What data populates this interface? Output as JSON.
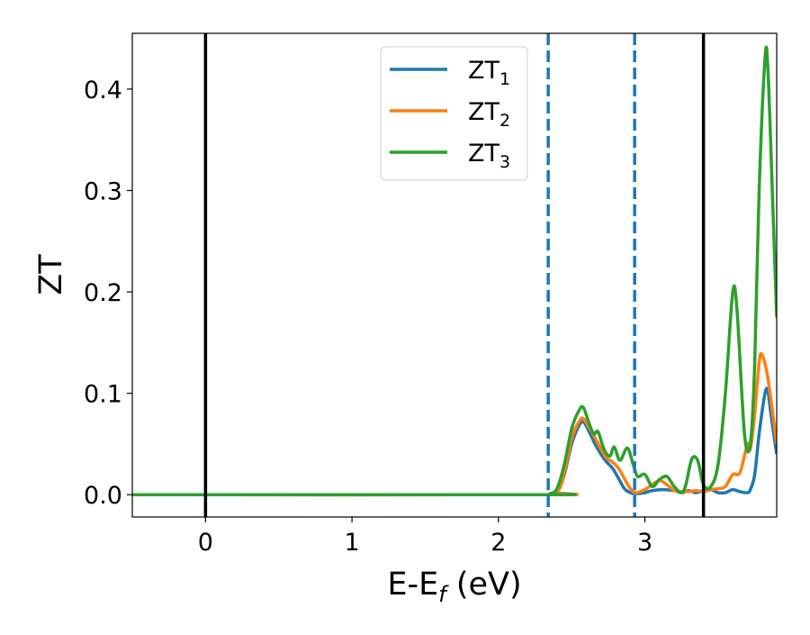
{
  "chart_data": {
    "type": "line",
    "title": "",
    "xlabel": "E-E",
    "xlabel_subscript": "f",
    "xlabel_unit": " (eV)",
    "ylabel": "ZT",
    "xlim": [
      -0.5,
      3.9
    ],
    "ylim": [
      -0.022,
      0.455
    ],
    "x_ticks": [
      0,
      1,
      2,
      3
    ],
    "x_tick_labels": [
      "0",
      "1",
      "2",
      "3"
    ],
    "y_ticks": [
      0.0,
      0.1,
      0.2,
      0.3,
      0.4
    ],
    "y_tick_labels": [
      "0.0",
      "0.1",
      "0.2",
      "0.3",
      "0.4"
    ],
    "grid": false,
    "legend_position": "top-center",
    "vertical_lines": [
      {
        "x": 0.0,
        "style": "solid",
        "color": "#000000"
      },
      {
        "x": 2.34,
        "style": "dashed",
        "color": "#1f77b4"
      },
      {
        "x": 2.93,
        "style": "dashed",
        "color": "#1f77b4"
      },
      {
        "x": 3.4,
        "style": "solid",
        "color": "#000000"
      }
    ],
    "series": [
      {
        "name": "ZT",
        "name_subscript": "1",
        "color": "#1f77b4",
        "points": [
          [
            -0.5,
            0
          ],
          [
            2.3,
            0
          ],
          [
            2.4,
            0.003
          ],
          [
            2.45,
            0.02
          ],
          [
            2.5,
            0.05
          ],
          [
            2.55,
            0.068
          ],
          [
            2.58,
            0.072
          ],
          [
            2.62,
            0.062
          ],
          [
            2.66,
            0.05
          ],
          [
            2.7,
            0.04
          ],
          [
            2.74,
            0.032
          ],
          [
            2.78,
            0.026
          ],
          [
            2.82,
            0.016
          ],
          [
            2.86,
            0.006
          ],
          [
            2.9,
            0.002
          ],
          [
            2.94,
            0.001
          ],
          [
            3.0,
            0.002
          ],
          [
            3.05,
            0.004
          ],
          [
            3.12,
            0.005
          ],
          [
            3.2,
            0.004
          ],
          [
            3.25,
            0.002
          ],
          [
            3.3,
            0.004
          ],
          [
            3.35,
            0.002
          ],
          [
            3.4,
            0.004
          ],
          [
            3.45,
            0.005
          ],
          [
            3.5,
            0.002
          ],
          [
            3.55,
            0.002
          ],
          [
            3.6,
            0.005
          ],
          [
            3.65,
            0.003
          ],
          [
            3.7,
            0.002
          ],
          [
            3.72,
            0.005
          ],
          [
            3.75,
            0.02
          ],
          [
            3.78,
            0.06
          ],
          [
            3.82,
            0.1
          ],
          [
            3.84,
            0.102
          ],
          [
            3.86,
            0.08
          ],
          [
            3.9,
            0.04
          ]
        ]
      },
      {
        "name": "ZT",
        "name_subscript": "2",
        "color": "#ff7f0e",
        "points": [
          [
            -0.5,
            0
          ],
          [
            2.3,
            0
          ],
          [
            2.4,
            0.003
          ],
          [
            2.45,
            0.022
          ],
          [
            2.5,
            0.055
          ],
          [
            2.55,
            0.072
          ],
          [
            2.58,
            0.075
          ],
          [
            2.62,
            0.066
          ],
          [
            2.66,
            0.056
          ],
          [
            2.7,
            0.045
          ],
          [
            2.74,
            0.036
          ],
          [
            2.78,
            0.032
          ],
          [
            2.82,
            0.026
          ],
          [
            2.86,
            0.016
          ],
          [
            2.9,
            0.006
          ],
          [
            2.94,
            0.002
          ],
          [
            3.0,
            0.005
          ],
          [
            3.05,
            0.01
          ],
          [
            3.1,
            0.014
          ],
          [
            3.15,
            0.01
          ],
          [
            3.2,
            0.004
          ],
          [
            3.25,
            0.003
          ],
          [
            3.3,
            0.003
          ],
          [
            3.35,
            0.004
          ],
          [
            3.4,
            0.003
          ],
          [
            3.45,
            0.005
          ],
          [
            3.5,
            0.006
          ],
          [
            3.55,
            0.008
          ],
          [
            3.6,
            0.02
          ],
          [
            3.65,
            0.022
          ],
          [
            3.7,
            0.05
          ],
          [
            3.72,
            0.045
          ],
          [
            3.75,
            0.08
          ],
          [
            3.78,
            0.13
          ],
          [
            3.8,
            0.138
          ],
          [
            3.84,
            0.115
          ],
          [
            3.9,
            0.05
          ]
        ]
      },
      {
        "name": "ZT",
        "name_subscript": "3",
        "color": "#2ca02c",
        "points": [
          [
            -0.5,
            0
          ],
          [
            2.3,
            0
          ],
          [
            2.35,
            0.001
          ],
          [
            2.4,
            0.006
          ],
          [
            2.45,
            0.03
          ],
          [
            2.5,
            0.065
          ],
          [
            2.55,
            0.083
          ],
          [
            2.58,
            0.086
          ],
          [
            2.62,
            0.07
          ],
          [
            2.65,
            0.06
          ],
          [
            2.68,
            0.062
          ],
          [
            2.72,
            0.045
          ],
          [
            2.76,
            0.038
          ],
          [
            2.79,
            0.047
          ],
          [
            2.83,
            0.034
          ],
          [
            2.88,
            0.046
          ],
          [
            2.92,
            0.03
          ],
          [
            2.95,
            0.018
          ],
          [
            3.0,
            0.02
          ],
          [
            3.05,
            0.008
          ],
          [
            3.1,
            0.015
          ],
          [
            3.15,
            0.018
          ],
          [
            3.2,
            0.008
          ],
          [
            3.25,
            0.002
          ],
          [
            3.28,
            0.01
          ],
          [
            3.32,
            0.035
          ],
          [
            3.36,
            0.034
          ],
          [
            3.4,
            0.01
          ],
          [
            3.45,
            0.008
          ],
          [
            3.5,
            0.03
          ],
          [
            3.55,
            0.1
          ],
          [
            3.6,
            0.2
          ],
          [
            3.63,
            0.18
          ],
          [
            3.68,
            0.06
          ],
          [
            3.72,
            0.05
          ],
          [
            3.75,
            0.13
          ],
          [
            3.78,
            0.3
          ],
          [
            3.82,
            0.43
          ],
          [
            3.84,
            0.42
          ],
          [
            3.87,
            0.3
          ],
          [
            3.9,
            0.175
          ]
        ]
      }
    ]
  }
}
